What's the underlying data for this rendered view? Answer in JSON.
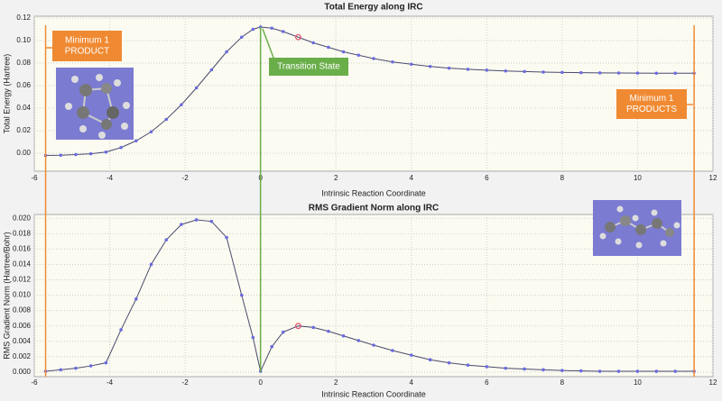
{
  "chart_data": [
    {
      "type": "line",
      "title": "Total Energy along IRC",
      "x_label": "Intrinsic Reaction Coordinate",
      "y_label": "Total Energy (Hartree)",
      "x": [
        -5.7,
        -5.3,
        -4.9,
        -4.5,
        -4.1,
        -3.7,
        -3.3,
        -2.9,
        -2.5,
        -2.1,
        -1.7,
        -1.3,
        -0.9,
        -0.5,
        -0.2,
        0,
        0.3,
        0.6,
        1.0,
        1.4,
        1.8,
        2.2,
        2.6,
        3.0,
        3.5,
        4.0,
        4.5,
        5.0,
        5.5,
        6.0,
        6.5,
        7.0,
        7.5,
        8.0,
        8.5,
        9.0,
        9.5,
        10.0,
        10.5,
        11.0,
        11.5
      ],
      "series": [
        {
          "color": "#4a4a6e",
          "values": [
            -0.002,
            -0.0018,
            -0.0012,
            -0.0005,
            0.001,
            0.005,
            0.011,
            0.019,
            0.03,
            0.043,
            0.058,
            0.074,
            0.09,
            0.103,
            0.11,
            0.112,
            0.111,
            0.108,
            0.103,
            0.098,
            0.094,
            0.09,
            0.087,
            0.084,
            0.081,
            0.079,
            0.077,
            0.0755,
            0.0745,
            0.0737,
            0.073,
            0.0725,
            0.072,
            0.0717,
            0.0715,
            0.0713,
            0.0712,
            0.0711,
            0.071,
            0.071,
            0.071
          ]
        }
      ],
      "marker_color": "#6b6be0",
      "highlighted_point": 18,
      "highlight_color": "#e0506a",
      "xlim": [
        -6,
        12
      ],
      "xticks": [
        -6,
        -4,
        -2,
        0,
        2,
        4,
        6,
        8,
        10,
        12
      ],
      "ylim": [
        -0.016,
        0.1216
      ],
      "yticks": [
        {
          "value": 0,
          "label": "0.00"
        },
        0.02,
        0.04,
        0.06,
        0.08,
        {
          "value": 0.1,
          "label": "0.10"
        },
        0.12
      ],
      "grid": true,
      "annotations": [
        {
          "lines": [
            "Minimum 1",
            "PRODUCT"
          ],
          "color": "#f08a32"
        },
        {
          "lines": [
            "Transition State"
          ],
          "color": "#6aae4a"
        },
        {
          "lines": [
            "Minimum 1",
            "PRODUCTS"
          ],
          "color": "#f08a32"
        }
      ]
    },
    {
      "type": "line",
      "title": "RMS Gradient Norm along IRC",
      "x_label": "Intrinsic Reaction Coordinate",
      "y_label": "RMS Gradient Norm (Hartree/Bohr)",
      "x": [
        -5.7,
        -5.3,
        -4.9,
        -4.5,
        -4.1,
        -3.7,
        -3.3,
        -2.9,
        -2.5,
        -2.1,
        -1.7,
        -1.3,
        -0.9,
        -0.5,
        -0.2,
        0,
        0.3,
        0.6,
        1.0,
        1.4,
        1.8,
        2.2,
        2.6,
        3.0,
        3.5,
        4.0,
        4.5,
        5.0,
        5.5,
        6.0,
        6.5,
        7.0,
        7.5,
        8.0,
        8.5,
        9.0,
        9.5,
        10.0,
        10.5,
        11.0,
        11.5
      ],
      "series": [
        {
          "color": "#4a4a6e",
          "values": [
            0.0001,
            0.0003,
            0.0005,
            0.0008,
            0.0012,
            0.0055,
            0.0095,
            0.014,
            0.0172,
            0.0192,
            0.0198,
            0.0196,
            0.0175,
            0.01,
            0.0045,
            0.0001,
            0.0033,
            0.0052,
            0.006,
            0.0058,
            0.0053,
            0.0047,
            0.0041,
            0.0035,
            0.0028,
            0.0022,
            0.0016,
            0.0012,
            0.0009,
            0.0007,
            0.0005,
            0.0004,
            0.0003,
            0.0002,
            0.00015,
            0.0001,
            0.0001,
            0.0001,
            0.0001,
            0.0001,
            0.0001
          ]
        }
      ],
      "marker_color": "#6b6be0",
      "highlighted_point": 18,
      "highlight_color": "#e0506a",
      "xlim": [
        -6,
        12
      ],
      "xticks": [
        -6,
        -4,
        -2,
        0,
        2,
        4,
        6,
        8,
        10,
        12
      ],
      "ylim": [
        -0.0006,
        0.0205
      ],
      "yticks": [
        {
          "value": 0,
          "label": "0.000"
        },
        0.002,
        0.004,
        0.006,
        0.008,
        {
          "value": 0.01,
          "label": "0.010"
        },
        0.012,
        0.014,
        0.016,
        0.018,
        {
          "value": 0.02,
          "label": "0.020"
        }
      ],
      "grid": true
    }
  ]
}
